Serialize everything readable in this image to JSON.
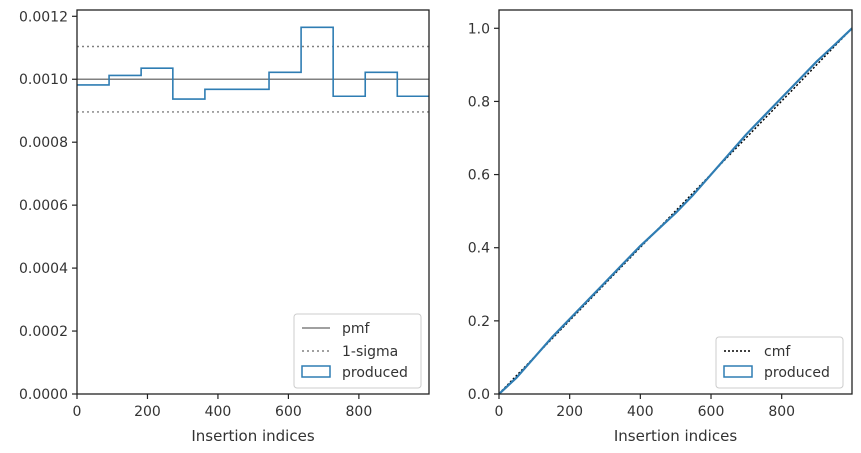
{
  "colors": {
    "produced": "#2f7db3",
    "pmf": "#808080",
    "sigma": "#808080",
    "cmf": "#000000",
    "axes": "#222222",
    "text": "#333333"
  },
  "chart_data": [
    {
      "type": "step",
      "xlabel": "Insertion indices",
      "ylabel": "",
      "xlim": [
        0,
        999
      ],
      "ylim": [
        0,
        0.00122
      ],
      "x_ticks": [
        0,
        200,
        400,
        600,
        800
      ],
      "x_tick_labels": [
        "0",
        "200",
        "400",
        "600",
        "800"
      ],
      "y_ticks": [
        0,
        0.0002,
        0.0004,
        0.0006,
        0.0008,
        0.001,
        0.0012
      ],
      "y_tick_labels": [
        "0.0000",
        "0.0002",
        "0.0004",
        "0.0006",
        "0.0008",
        "0.0010",
        "0.0012"
      ],
      "legend_position": "lower-right",
      "legend": [
        "pmf",
        "1-sigma",
        "produced"
      ],
      "pmf": 0.001,
      "sigma_band": [
        0.000896,
        0.001104
      ],
      "bin_edges": [
        0,
        91,
        182,
        272,
        363,
        454,
        545,
        636,
        727,
        818,
        909,
        999
      ],
      "values": [
        0.000982,
        0.001012,
        0.001035,
        0.000937,
        0.000968,
        0.000968,
        0.001022,
        0.001165,
        0.000946,
        0.001022,
        0.000946
      ]
    },
    {
      "type": "line",
      "xlabel": "Insertion indices",
      "ylabel": "",
      "xlim": [
        0,
        999
      ],
      "ylim": [
        0,
        1.05
      ],
      "x_ticks": [
        0,
        200,
        400,
        600,
        800
      ],
      "x_tick_labels": [
        "0",
        "200",
        "400",
        "600",
        "800"
      ],
      "y_ticks": [
        0,
        0.2,
        0.4,
        0.6,
        0.8,
        1.0
      ],
      "y_tick_labels": [
        "0.0",
        "0.2",
        "0.4",
        "0.6",
        "0.8",
        "1.0"
      ],
      "legend_position": "lower-right",
      "legend": [
        "cmf",
        "produced"
      ],
      "cmf": {
        "x": [
          0,
          999
        ],
        "y": [
          0.001,
          1.0
        ]
      },
      "produced": {
        "x": [
          0,
          50,
          100,
          150,
          200,
          250,
          300,
          350,
          400,
          450,
          500,
          550,
          600,
          650,
          700,
          750,
          800,
          850,
          900,
          950,
          999
        ],
        "y": [
          0.0,
          0.045,
          0.1,
          0.155,
          0.205,
          0.255,
          0.305,
          0.355,
          0.405,
          0.45,
          0.495,
          0.545,
          0.6,
          0.655,
          0.71,
          0.76,
          0.81,
          0.86,
          0.91,
          0.955,
          1.0
        ]
      }
    }
  ]
}
